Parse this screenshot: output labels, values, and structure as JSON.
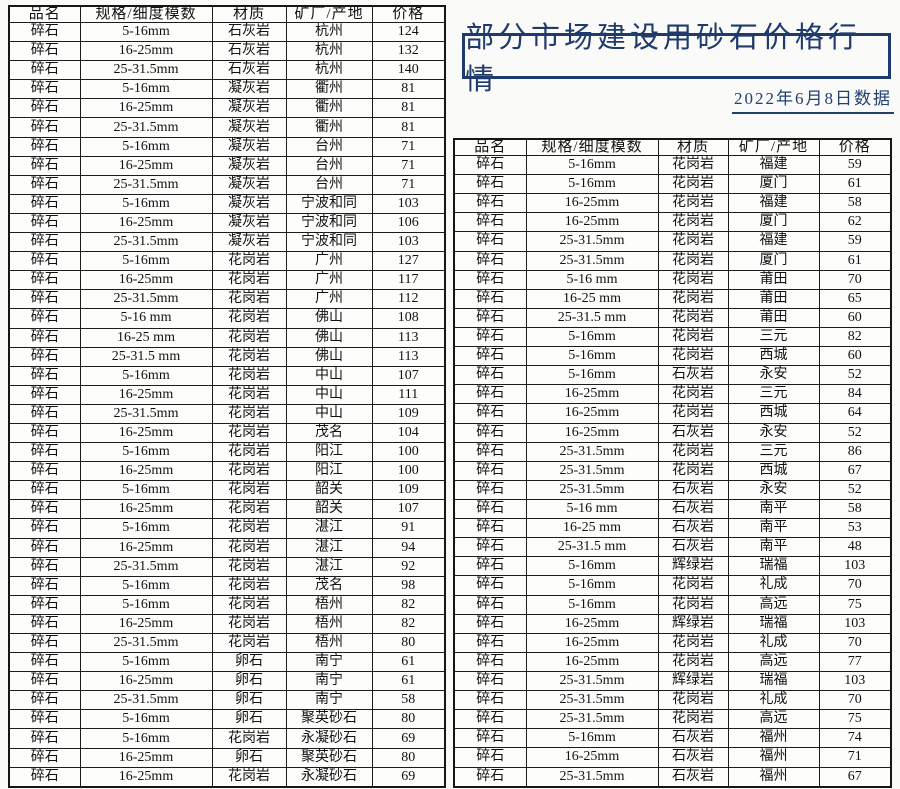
{
  "header": {
    "title": "部分市场建设用砂石价格行情",
    "date": "2022年6月8日数据"
  },
  "colors": {
    "accent_navy": "#1f3a6d",
    "table_border": "#1c1c1c",
    "text": "#121212",
    "background": "#fafaf8"
  },
  "columns": [
    "品名",
    "规格/细度模数",
    "材质",
    "矿厂/产地",
    "价格"
  ],
  "left_table": {
    "rows": [
      [
        "碎石",
        "5-16mm",
        "石灰岩",
        "杭州",
        "124"
      ],
      [
        "碎石",
        "16-25mm",
        "石灰岩",
        "杭州",
        "132"
      ],
      [
        "碎石",
        "25-31.5mm",
        "石灰岩",
        "杭州",
        "140"
      ],
      [
        "碎石",
        "5-16mm",
        "凝灰岩",
        "衢州",
        "81"
      ],
      [
        "碎石",
        "16-25mm",
        "凝灰岩",
        "衢州",
        "81"
      ],
      [
        "碎石",
        "25-31.5mm",
        "凝灰岩",
        "衢州",
        "81"
      ],
      [
        "碎石",
        "5-16mm",
        "凝灰岩",
        "台州",
        "71"
      ],
      [
        "碎石",
        "16-25mm",
        "凝灰岩",
        "台州",
        "71"
      ],
      [
        "碎石",
        "25-31.5mm",
        "凝灰岩",
        "台州",
        "71"
      ],
      [
        "碎石",
        "5-16mm",
        "凝灰岩",
        "宁波和同",
        "103"
      ],
      [
        "碎石",
        "16-25mm",
        "凝灰岩",
        "宁波和同",
        "106"
      ],
      [
        "碎石",
        "25-31.5mm",
        "凝灰岩",
        "宁波和同",
        "103"
      ],
      [
        "碎石",
        "5-16mm",
        "花岗岩",
        "广州",
        "127"
      ],
      [
        "碎石",
        "16-25mm",
        "花岗岩",
        "广州",
        "117"
      ],
      [
        "碎石",
        "25-31.5mm",
        "花岗岩",
        "广州",
        "112"
      ],
      [
        "碎石",
        "5-16 mm",
        "花岗岩",
        "佛山",
        "108"
      ],
      [
        "碎石",
        "16-25 mm",
        "花岗岩",
        "佛山",
        "113"
      ],
      [
        "碎石",
        "25-31.5 mm",
        "花岗岩",
        "佛山",
        "113"
      ],
      [
        "碎石",
        "5-16mm",
        "花岗岩",
        "中山",
        "107"
      ],
      [
        "碎石",
        "16-25mm",
        "花岗岩",
        "中山",
        "111"
      ],
      [
        "碎石",
        "25-31.5mm",
        "花岗岩",
        "中山",
        "109"
      ],
      [
        "碎石",
        "16-25mm",
        "花岗岩",
        "茂名",
        "104"
      ],
      [
        "碎石",
        "5-16mm",
        "花岗岩",
        "阳江",
        "100"
      ],
      [
        "碎石",
        "16-25mm",
        "花岗岩",
        "阳江",
        "100"
      ],
      [
        "碎石",
        "5-16mm",
        "花岗岩",
        "韶关",
        "109"
      ],
      [
        "碎石",
        "16-25mm",
        "花岗岩",
        "韶关",
        "107"
      ],
      [
        "碎石",
        "5-16mm",
        "花岗岩",
        "湛江",
        "91"
      ],
      [
        "碎石",
        "16-25mm",
        "花岗岩",
        "湛江",
        "94"
      ],
      [
        "碎石",
        "25-31.5mm",
        "花岗岩",
        "湛江",
        "92"
      ],
      [
        "碎石",
        "5-16mm",
        "花岗岩",
        "茂名",
        "98"
      ],
      [
        "碎石",
        "5-16mm",
        "花岗岩",
        "梧州",
        "82"
      ],
      [
        "碎石",
        "16-25mm",
        "花岗岩",
        "梧州",
        "82"
      ],
      [
        "碎石",
        "25-31.5mm",
        "花岗岩",
        "梧州",
        "80"
      ],
      [
        "碎石",
        "5-16mm",
        "卵石",
        "南宁",
        "61"
      ],
      [
        "碎石",
        "16-25mm",
        "卵石",
        "南宁",
        "61"
      ],
      [
        "碎石",
        "25-31.5mm",
        "卵石",
        "南宁",
        "58"
      ],
      [
        "碎石",
        "5-16mm",
        "卵石",
        "聚英砂石",
        "80"
      ],
      [
        "碎石",
        "5-16mm",
        "花岗岩",
        "永凝砂石",
        "69"
      ],
      [
        "碎石",
        "16-25mm",
        "卵石",
        "聚英砂石",
        "80"
      ],
      [
        "碎石",
        "16-25mm",
        "花岗岩",
        "永凝砂石",
        "69"
      ]
    ]
  },
  "right_table": {
    "rows": [
      [
        "碎石",
        "5-16mm",
        "花岗岩",
        "福建",
        "59"
      ],
      [
        "碎石",
        "5-16mm",
        "花岗岩",
        "厦门",
        "61"
      ],
      [
        "碎石",
        "16-25mm",
        "花岗岩",
        "福建",
        "58"
      ],
      [
        "碎石",
        "16-25mm",
        "花岗岩",
        "厦门",
        "62"
      ],
      [
        "碎石",
        "25-31.5mm",
        "花岗岩",
        "福建",
        "59"
      ],
      [
        "碎石",
        "25-31.5mm",
        "花岗岩",
        "厦门",
        "61"
      ],
      [
        "碎石",
        "5-16 mm",
        "花岗岩",
        "莆田",
        "70"
      ],
      [
        "碎石",
        "16-25 mm",
        "花岗岩",
        "莆田",
        "65"
      ],
      [
        "碎石",
        "25-31.5 mm",
        "花岗岩",
        "莆田",
        "60"
      ],
      [
        "碎石",
        "5-16mm",
        "花岗岩",
        "三元",
        "82"
      ],
      [
        "碎石",
        "5-16mm",
        "花岗岩",
        "西城",
        "60"
      ],
      [
        "碎石",
        "5-16mm",
        "石灰岩",
        "永安",
        "52"
      ],
      [
        "碎石",
        "16-25mm",
        "花岗岩",
        "三元",
        "84"
      ],
      [
        "碎石",
        "16-25mm",
        "花岗岩",
        "西城",
        "64"
      ],
      [
        "碎石",
        "16-25mm",
        "石灰岩",
        "永安",
        "52"
      ],
      [
        "碎石",
        "25-31.5mm",
        "花岗岩",
        "三元",
        "86"
      ],
      [
        "碎石",
        "25-31.5mm",
        "花岗岩",
        "西城",
        "67"
      ],
      [
        "碎石",
        "25-31.5mm",
        "石灰岩",
        "永安",
        "52"
      ],
      [
        "碎石",
        "5-16 mm",
        "石灰岩",
        "南平",
        "58"
      ],
      [
        "碎石",
        "16-25 mm",
        "石灰岩",
        "南平",
        "53"
      ],
      [
        "碎石",
        "25-31.5 mm",
        "石灰岩",
        "南平",
        "48"
      ],
      [
        "碎石",
        "5-16mm",
        "辉绿岩",
        "瑞福",
        "103"
      ],
      [
        "碎石",
        "5-16mm",
        "花岗岩",
        "礼成",
        "70"
      ],
      [
        "碎石",
        "5-16mm",
        "花岗岩",
        "高远",
        "75"
      ],
      [
        "碎石",
        "16-25mm",
        "辉绿岩",
        "瑞福",
        "103"
      ],
      [
        "碎石",
        "16-25mm",
        "花岗岩",
        "礼成",
        "70"
      ],
      [
        "碎石",
        "16-25mm",
        "花岗岩",
        "高远",
        "77"
      ],
      [
        "碎石",
        "25-31.5mm",
        "辉绿岩",
        "瑞福",
        "103"
      ],
      [
        "碎石",
        "25-31.5mm",
        "花岗岩",
        "礼成",
        "70"
      ],
      [
        "碎石",
        "25-31.5mm",
        "花岗岩",
        "高远",
        "75"
      ],
      [
        "碎石",
        "5-16mm",
        "石灰岩",
        "福州",
        "74"
      ],
      [
        "碎石",
        "16-25mm",
        "石灰岩",
        "福州",
        "71"
      ],
      [
        "碎石",
        "25-31.5mm",
        "石灰岩",
        "福州",
        "67"
      ]
    ]
  }
}
